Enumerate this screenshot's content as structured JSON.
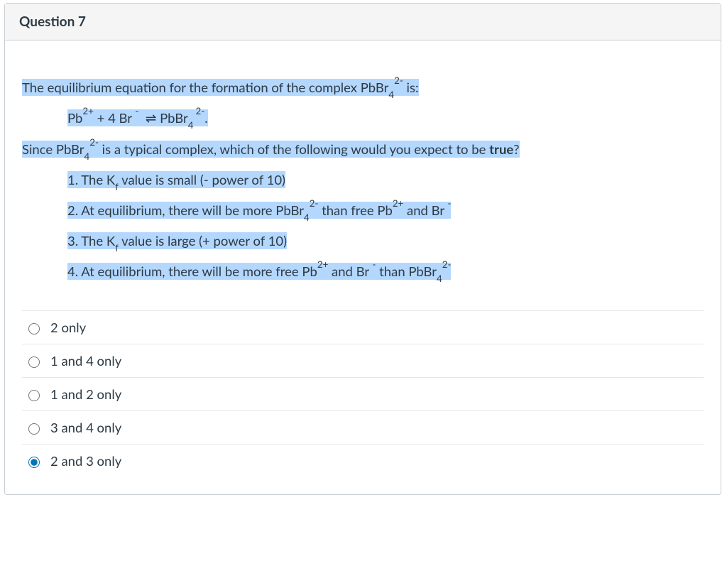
{
  "header": {
    "title": "Question 7"
  },
  "stem": {
    "highlight_bg": "#b4d7fe",
    "line_intro_pre": "The equilibrium equation for the formation of the complex PbBr",
    "line_intro_post": " is:",
    "eq_lhs_pb": "Pb",
    "eq_plus": " +  4 Br ",
    "eq_arrow": "⇌",
    "eq_rhs": "   PbBr",
    "eq_period": ".",
    "since_pre": "Since PbBr",
    "since_post": " is a typical complex, which of the following would you expect to be ",
    "since_true": "true",
    "since_q": "?",
    "s1_pre": "1.  The K",
    "s1_post": " value is small (- power of 10)",
    "s2_pre": "2.  At equilibrium, there will be more PbBr",
    "s2_mid": " than free Pb",
    "s2_post": " and Br ",
    "s3_pre": "3.  The K",
    "s3_post": " value is large (+ power of 10)",
    "s4_pre": "4.  At equilibrium, there will be more free Pb",
    "s4_mid": " and Br ",
    "s4_mid2": " than PbBr",
    "sup_2plus": "2+",
    "sup_2minus": "2-",
    "sup_minus": "-",
    "sub_4": "4",
    "sub_f": "f",
    "sup_2minus_trail": "2-"
  },
  "answers": {
    "a1": "2 only",
    "a2": "1 and 4 only",
    "a3": "1 and 2 only",
    "a4": "3 and 4 only",
    "a5": "2 and 3 only",
    "selected_index": 4
  },
  "colors": {
    "border": "#c7cdd1",
    "header_bg": "#f5f5f5",
    "text": "#2d3b45",
    "radio_accent": "#0374b5"
  }
}
